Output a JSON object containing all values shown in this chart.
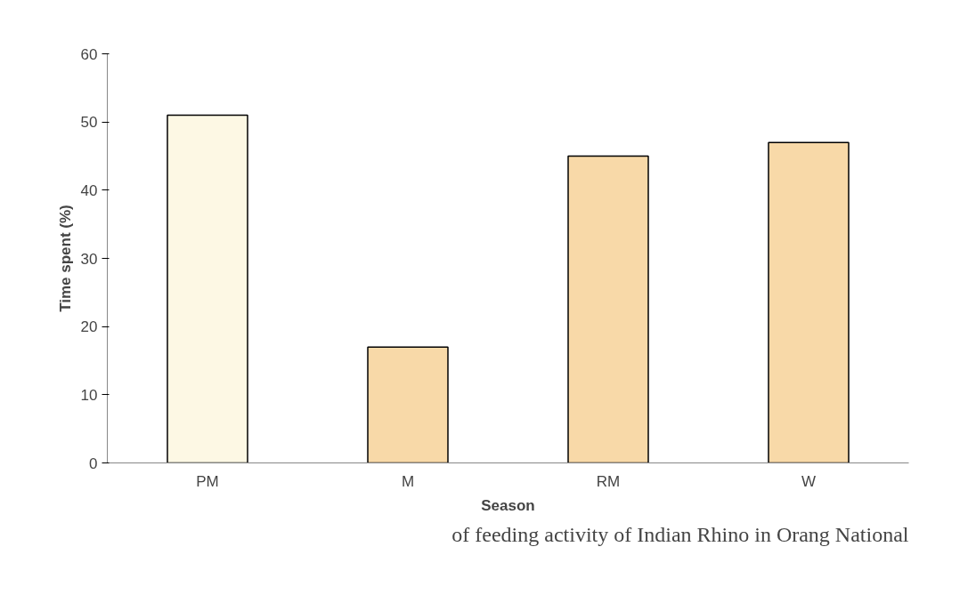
{
  "chart_data": {
    "type": "bar",
    "categories": [
      "PM",
      "M",
      "RM",
      "W"
    ],
    "values": [
      51,
      17,
      45,
      47
    ],
    "colors": [
      "#fdf8e4",
      "#f8d9a8",
      "#f8d9a8",
      "#f8d9a8"
    ],
    "xlabel": "Season",
    "ylabel": "Time spent (%)",
    "ylim": [
      0,
      60
    ],
    "yticks": [
      0,
      10,
      20,
      30,
      40,
      50,
      60
    ],
    "grid": false,
    "annotations": [
      "of feeding activity of Indian Rhino in Orang National"
    ]
  }
}
